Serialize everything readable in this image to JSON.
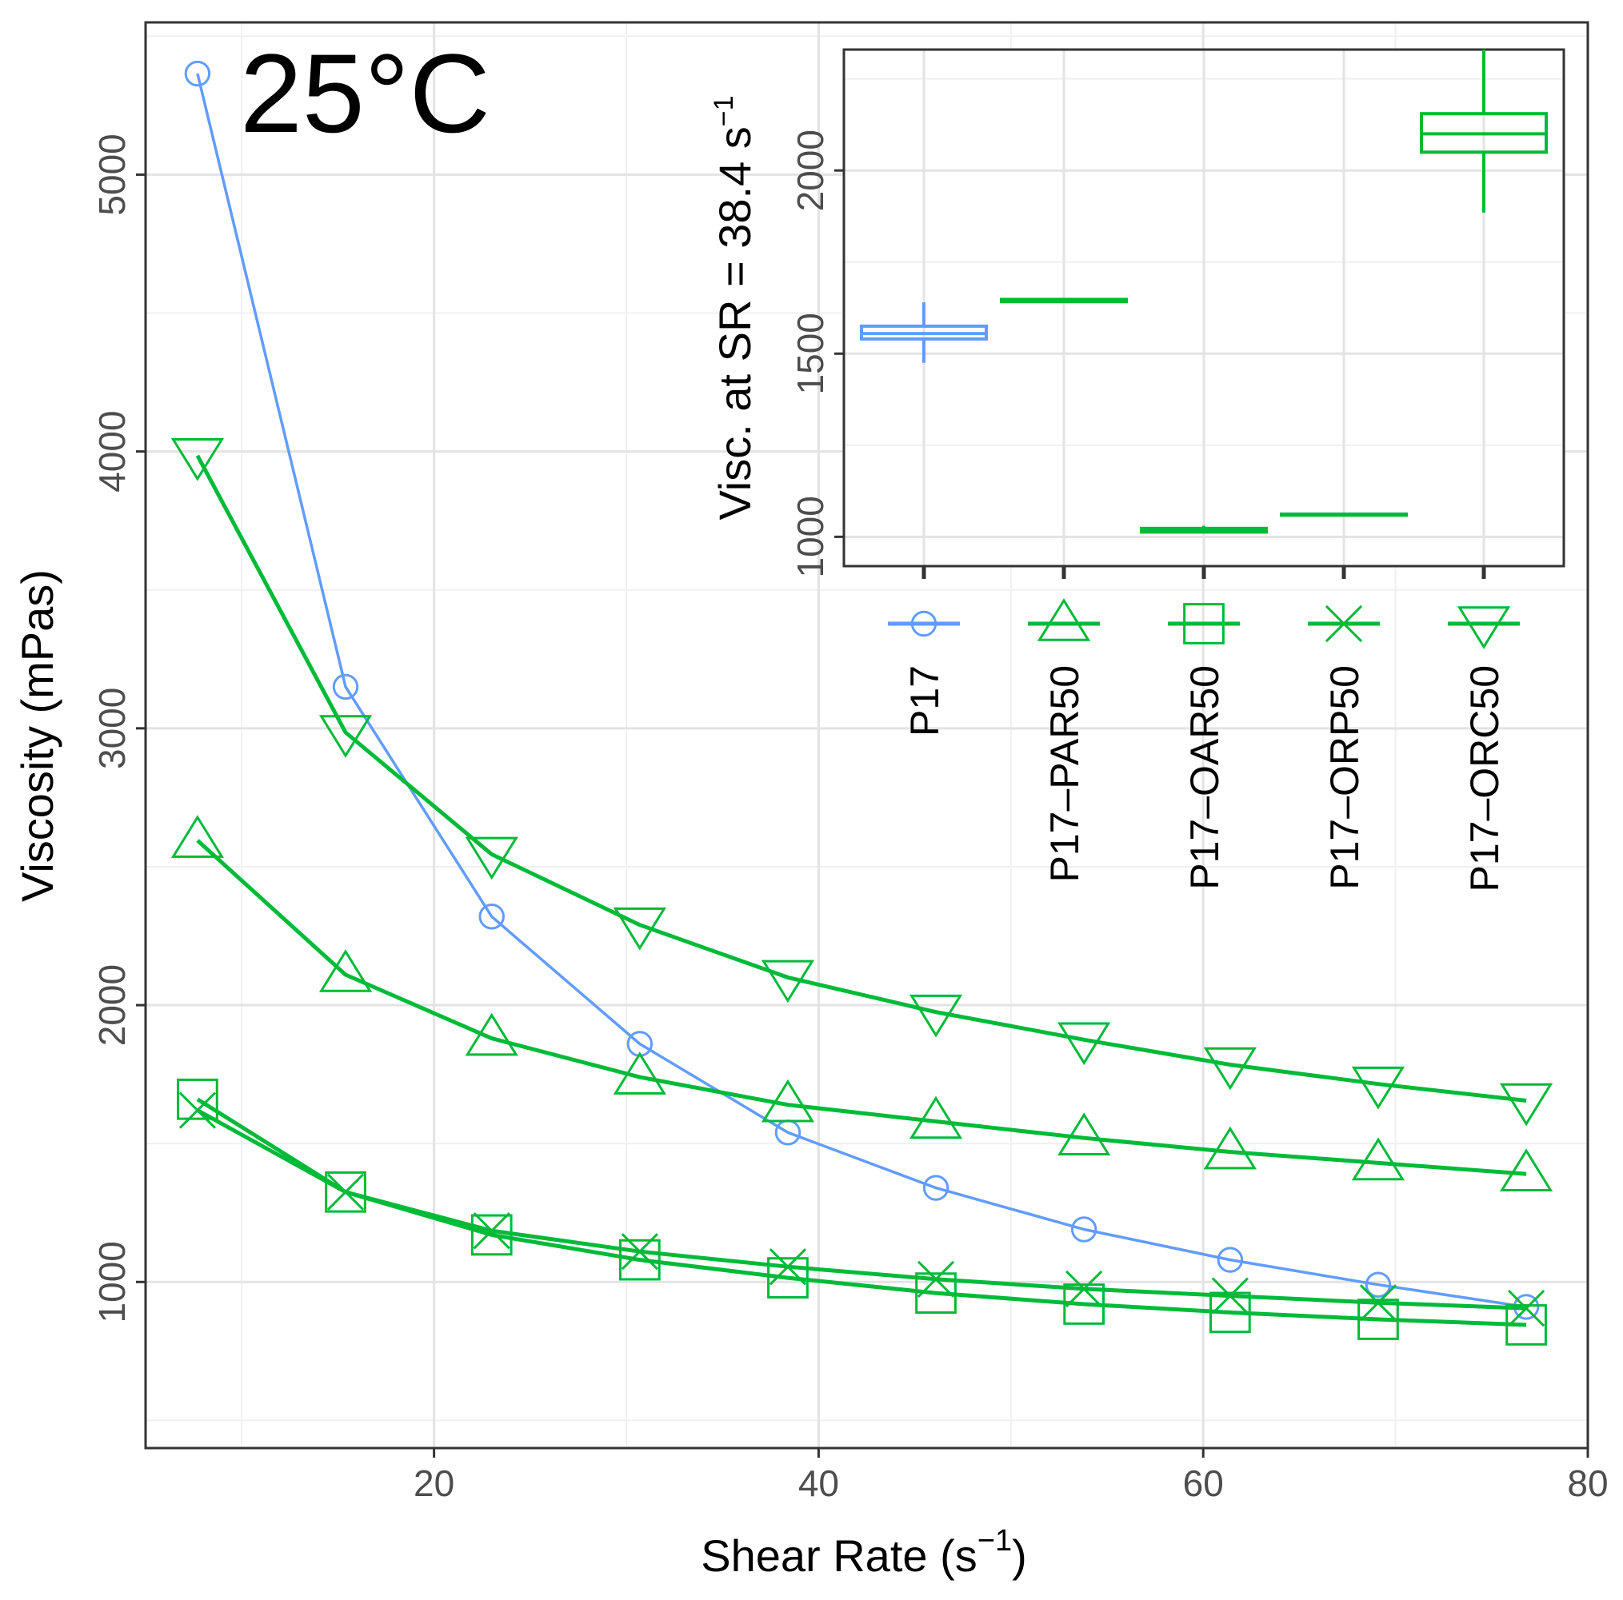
{
  "chart_data": {
    "type": "line",
    "annotation": "25°C",
    "xlabel": "Shear Rate (s",
    "xlabel_sup": "−1",
    "xlabel_close": ")",
    "ylabel": "Viscosity (mPas)",
    "xlim": [
      5,
      80
    ],
    "ylim": [
      400,
      5550
    ],
    "x_ticks": [
      20,
      40,
      60,
      80
    ],
    "y_ticks": [
      1000,
      2000,
      3000,
      4000,
      5000
    ],
    "grid": true,
    "x": [
      7.7,
      15.4,
      23.0,
      30.7,
      38.4,
      46.1,
      53.8,
      61.4,
      69.1,
      76.8
    ],
    "series": [
      {
        "name": "P17",
        "marker": "circle",
        "color": "#619cff",
        "values": [
          5365,
          3150,
          2320,
          1860,
          1540,
          1340,
          1190,
          1080,
          990,
          910
        ]
      },
      {
        "name": "P17–PAR50",
        "marker": "triangle-up",
        "color": "#00ba38",
        "values": [
          2595,
          2110,
          1880,
          1740,
          1640,
          1580,
          1520,
          1470,
          1430,
          1390
        ]
      },
      {
        "name": "P17–OAR50",
        "marker": "square",
        "color": "#00ba38",
        "values": [
          1660,
          1325,
          1170,
          1080,
          1015,
          960,
          920,
          890,
          865,
          845
        ]
      },
      {
        "name": "P17–ORP50",
        "marker": "x",
        "color": "#00ba38",
        "values": [
          1620,
          1325,
          1185,
          1110,
          1055,
          1010,
          975,
          950,
          925,
          905
        ]
      },
      {
        "name": "P17–ORC50",
        "marker": "triangle-down",
        "color": "#00ba38",
        "values": [
          3985,
          2985,
          2545,
          2290,
          2100,
          1975,
          1875,
          1785,
          1715,
          1655
        ]
      }
    ],
    "inset": {
      "type": "boxplot",
      "ylabel": "Visc. at SR = 38.4 s",
      "ylabel_sup": "−1",
      "ylim": [
        920,
        2330
      ],
      "y_ticks": [
        1000,
        1500,
        2000
      ],
      "categories": [
        "P17",
        "P17–PAR50",
        "P17–OAR50",
        "P17–ORP50",
        "P17–ORC50"
      ],
      "boxes": [
        {
          "name": "P17",
          "color": "#619cff",
          "min": 1475,
          "q1": 1540,
          "median": 1555,
          "q3": 1575,
          "max": 1640
        },
        {
          "name": "P17–PAR50",
          "color": "#00ba38",
          "min": 1640,
          "q1": 1642,
          "median": 1645,
          "q3": 1648,
          "max": 1650
        },
        {
          "name": "P17–OAR50",
          "color": "#00ba38",
          "min": 1010,
          "q1": 1013,
          "median": 1018,
          "q3": 1023,
          "max": 1030
        },
        {
          "name": "P17–ORP50",
          "color": "#00ba38",
          "min": 1058,
          "q1": 1059,
          "median": 1060,
          "q3": 1062,
          "max": 1063
        },
        {
          "name": "P17–ORC50",
          "color": "#00ba38",
          "min": 1885,
          "q1": 2050,
          "median": 2100,
          "q3": 2155,
          "max": 2330
        }
      ]
    }
  }
}
